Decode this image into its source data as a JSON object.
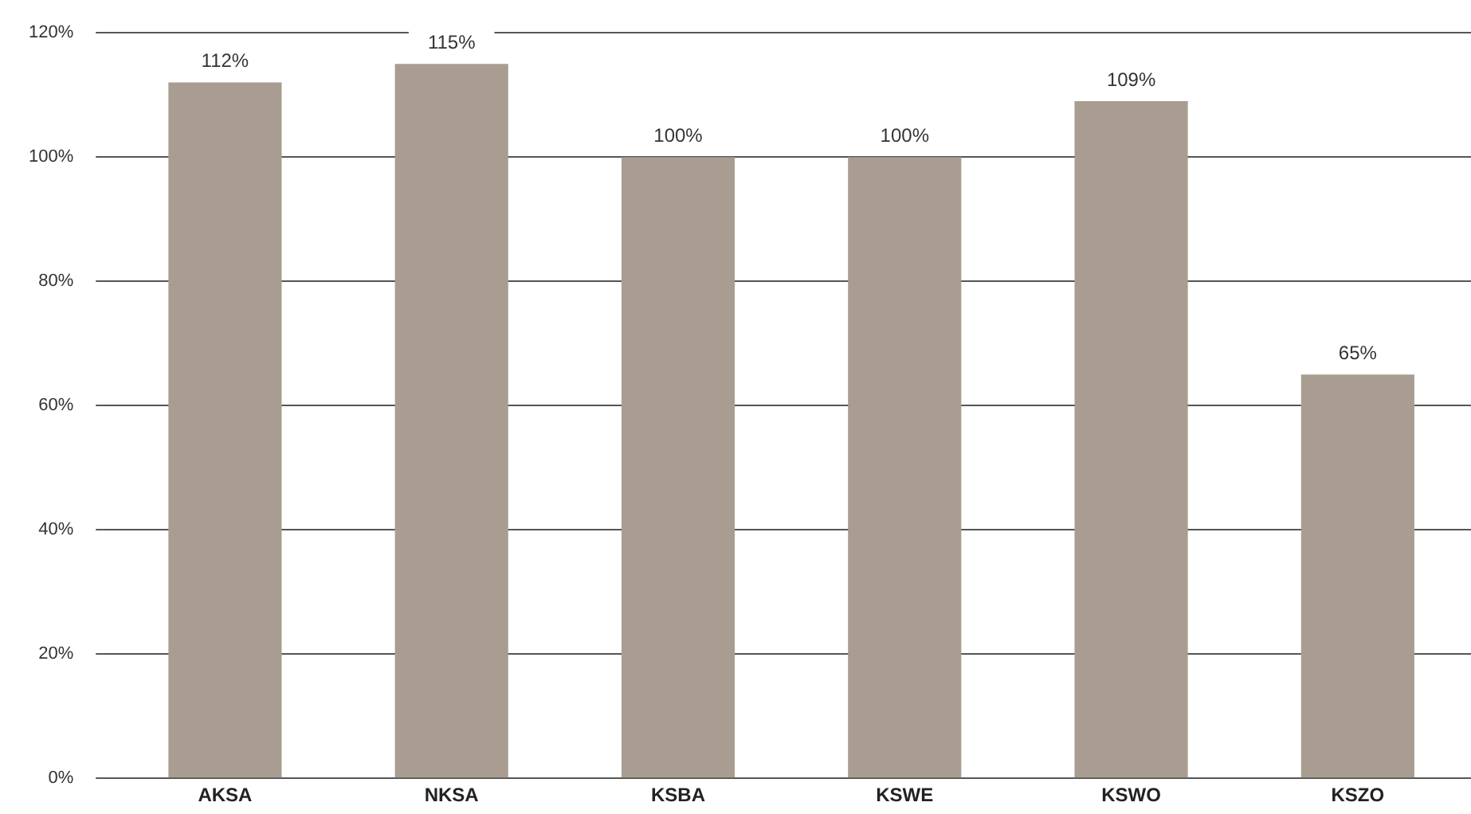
{
  "chart_data": {
    "type": "bar",
    "categories": [
      "AKSA",
      "NKSA",
      "KSBA",
      "KSWE",
      "KSWO",
      "KSZO"
    ],
    "values": [
      112,
      115,
      100,
      100,
      109,
      65
    ],
    "value_labels": [
      "112%",
      "115%",
      "100%",
      "100%",
      "109%",
      "65%"
    ],
    "color": "#a89d90",
    "ylim": [
      0,
      120
    ],
    "yticks": [
      {
        "value": 0,
        "label": "0%"
      },
      {
        "value": 20,
        "label": "20%"
      },
      {
        "value": 40,
        "label": "40%"
      },
      {
        "value": 60,
        "label": "60%"
      },
      {
        "value": 80,
        "label": "80%"
      },
      {
        "value": 100,
        "label": "100%"
      },
      {
        "value": 120,
        "label": "120%"
      }
    ],
    "grid": "y",
    "legend": false
  }
}
